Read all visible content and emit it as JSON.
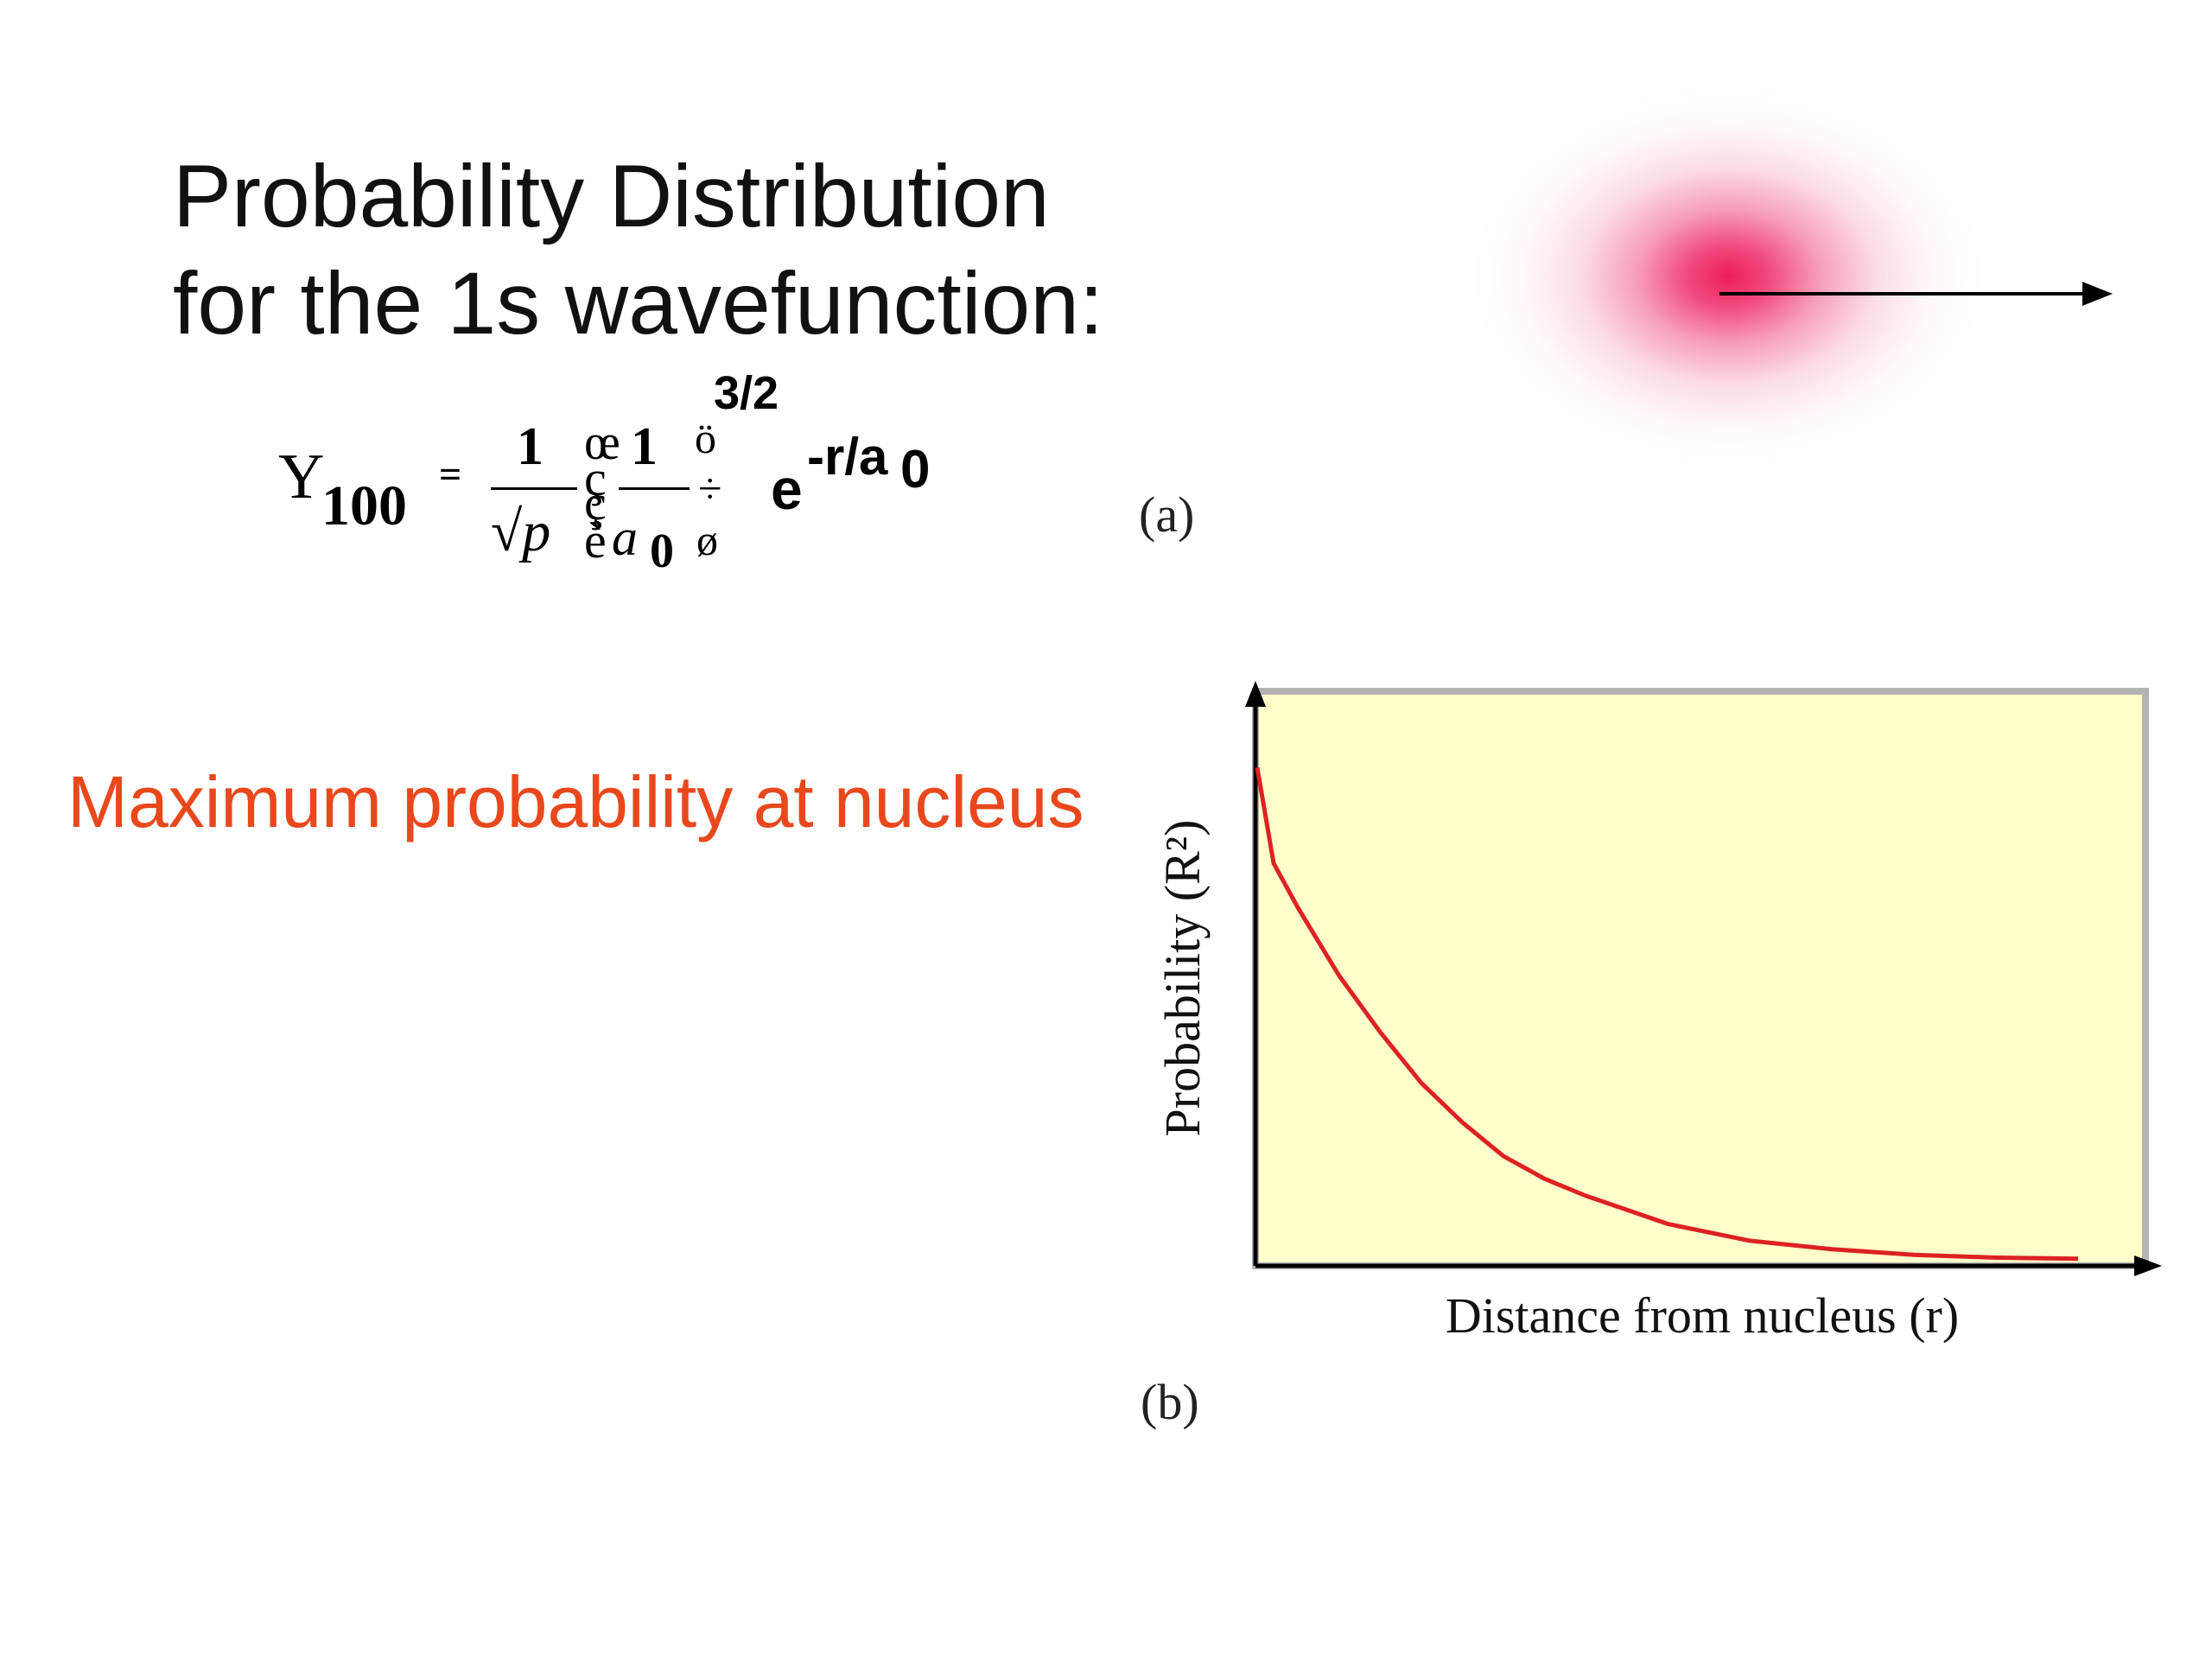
{
  "title": {
    "line1": "Probability Distribution",
    "line2": "for the 1s wavefunction:"
  },
  "equation": {
    "psi": "Y",
    "subscript": "100",
    "equals": "=",
    "numerator": "1",
    "denominator": "√p",
    "bracket_top_left": "œ",
    "bracket_mid_left": "ç",
    "bracket_mid_left2": "ç",
    "bracket_bottom_left": "è",
    "inner_numerator": "1",
    "inner_denominator": "a",
    "inner_denominator_sub": "0",
    "bracket_top_right": "ö",
    "bracket_mid_right": "÷",
    "bracket_bottom_right": "ø",
    "exponent": "3/2",
    "exp_base": "e",
    "exp_power": "-r/a",
    "exp_power_sub": "0"
  },
  "orbital_caption": "(a)",
  "note": "Maximum probability at nucleus",
  "colors": {
    "note": "#e8481c",
    "orbital": "#ee1e5a",
    "plot_background": "#ffffcc",
    "plot_border": "#b4b4b4",
    "curve": "#dd2222"
  },
  "chart_caption": "(b)",
  "chart_data": {
    "type": "line",
    "title": "",
    "xlabel": "Distance from nucleus (r)",
    "ylabel": "Probability (R²)",
    "xlim": [
      0,
      1
    ],
    "ylim": [
      0,
      1
    ],
    "grid": false,
    "series": [
      {
        "x": [
          0,
          0.02,
          0.05,
          0.1,
          0.15,
          0.2,
          0.25,
          0.3,
          0.35,
          0.4,
          0.5,
          0.6,
          0.7,
          0.8,
          0.9,
          1.0
        ],
        "y": [
          0.88,
          0.71,
          0.63,
          0.51,
          0.41,
          0.32,
          0.25,
          0.19,
          0.15,
          0.12,
          0.07,
          0.04,
          0.025,
          0.015,
          0.01,
          0.008
        ]
      }
    ]
  }
}
